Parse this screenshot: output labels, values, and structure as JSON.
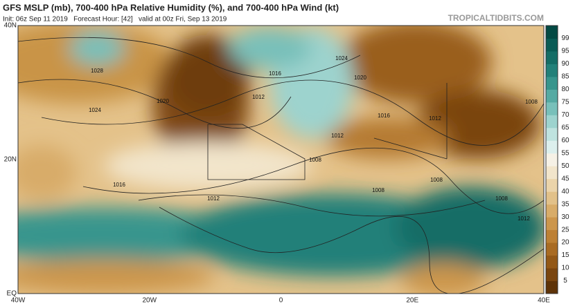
{
  "header": {
    "title": "GFS MSLP (mb), 700-400 hPa Relative Humidity (%), and 700-400 hPa Wind (kt)",
    "subtitle": "Init: 06z Sep 11 2019   Forecast Hour: [42]   valid at 00z Fri, Sep 13 2019",
    "brand": "TROPICALTIDBITS.COM"
  },
  "map": {
    "lat_labels": [
      "40N",
      "20N",
      "EQ"
    ],
    "lon_labels": [
      "40W",
      "20W",
      "0",
      "20E",
      "40E"
    ],
    "isobar_labels": [
      "1028",
      "1024",
      "1020",
      "1016",
      "1012",
      "1024",
      "1020",
      "1016",
      "1012",
      "1008",
      "1012",
      "1008",
      "1016",
      "1012",
      "1008",
      "1008",
      "1008",
      "1012"
    ]
  },
  "colorbar": {
    "ticks": [
      5,
      10,
      15,
      20,
      25,
      30,
      35,
      40,
      45,
      50,
      55,
      60,
      65,
      70,
      75,
      80,
      85,
      90,
      95,
      99
    ],
    "colors": [
      "#5e3308",
      "#7a450f",
      "#935817",
      "#a96b23",
      "#bd8034",
      "#cc964c",
      "#d8ac69",
      "#e2c189",
      "#ebd4aa",
      "#f2e5cb",
      "#f6f1e6",
      "#dcefed",
      "#bfe3df",
      "#9dd3ce",
      "#78c0ba",
      "#55aaa3",
      "#37958d",
      "#228079",
      "#146d66",
      "#095b55",
      "#034a44"
    ]
  }
}
